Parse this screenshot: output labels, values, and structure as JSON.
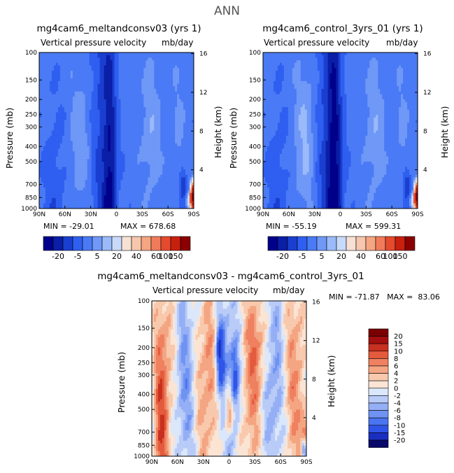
{
  "main_title": "ANN",
  "chart_data": [
    {
      "type": "heatmap",
      "title": "mg4cam6_meltandconsv03 (yrs 1)",
      "subtitle_left": "Vertical pressure velocity",
      "units": "mb/day",
      "xlabel": "",
      "ylabel": "Pressure (mb)",
      "ylabel_right": "Height (km)",
      "x_ticks": [
        "90N",
        "60N",
        "30N",
        "0",
        "30S",
        "60S",
        "90S"
      ],
      "y_ticks": [
        "100",
        "150",
        "200",
        "250",
        "300",
        "400",
        "500",
        "700",
        "850",
        "1000"
      ],
      "y_right_ticks": [
        "16",
        "12",
        "8",
        "4"
      ],
      "ylim": [
        1000,
        100
      ],
      "y_scale": "log",
      "min_label": "MIN = -29.01",
      "max_label": "MAX = 678.68",
      "colorbar_ticks": [
        "-20",
        "-5",
        "5",
        "20",
        "40",
        "60",
        "100",
        "150"
      ],
      "colorbar_orientation": "horizontal"
    },
    {
      "type": "heatmap",
      "title": "mg4cam6_control_3yrs_01 (yrs 1)",
      "subtitle_left": "Vertical pressure velocity",
      "units": "mb/day",
      "xlabel": "",
      "ylabel": "Pressure (mb)",
      "ylabel_right": "Height (km)",
      "x_ticks": [
        "90N",
        "60N",
        "30N",
        "0",
        "30S",
        "60S",
        "90S"
      ],
      "y_ticks": [
        "100",
        "150",
        "200",
        "250",
        "300",
        "400",
        "500",
        "700",
        "850",
        "1000"
      ],
      "y_right_ticks": [
        "16",
        "12",
        "8",
        "4"
      ],
      "ylim": [
        1000,
        100
      ],
      "y_scale": "log",
      "min_label": "MIN = -55.19",
      "max_label": "MAX = 599.31",
      "colorbar_ticks": [
        "-20",
        "-5",
        "5",
        "20",
        "40",
        "60",
        "100",
        "150"
      ],
      "colorbar_orientation": "horizontal"
    },
    {
      "type": "heatmap",
      "title": "mg4cam6_meltandconsv03 - mg4cam6_control_3yrs_01",
      "subtitle_left": "Vertical pressure velocity",
      "units": "mb/day",
      "xlabel": "",
      "ylabel": "Pressure (mb)",
      "ylabel_right": "Height (km)",
      "x_ticks": [
        "90N",
        "60N",
        "30N",
        "0",
        "30S",
        "60S",
        "90S"
      ],
      "y_ticks": [
        "100",
        "150",
        "200",
        "250",
        "300",
        "400",
        "500",
        "700",
        "850",
        "1000"
      ],
      "y_right_ticks": [
        "16",
        "12",
        "8",
        "4"
      ],
      "ylim": [
        1000,
        100
      ],
      "y_scale": "log",
      "min_max_label": "MIN = -71.87   MAX =  83.06",
      "colorbar_ticks": [
        "20",
        "15",
        "10",
        "8",
        "6",
        "4",
        "2",
        "0",
        "-2",
        "-4",
        "-6",
        "-8",
        "-10",
        "-15",
        "-20"
      ],
      "colorbar_orientation": "vertical"
    }
  ],
  "colors": {
    "abs_scale": [
      "#00008b",
      "#0a1ea6",
      "#1a3fd0",
      "#2f5ff0",
      "#4a7af5",
      "#6f98f7",
      "#9bbaf9",
      "#c8daf9",
      "#f7e1d4",
      "#f6c6ad",
      "#f4a582",
      "#f07b5a",
      "#e64a2e",
      "#c8200e",
      "#8b0000"
    ],
    "diff_scale": [
      "#08086b",
      "#1a2fc0",
      "#2f55e8",
      "#4a75f0",
      "#6f93f3",
      "#94aff5",
      "#b9cbf7",
      "#dbe7fb",
      "#fbe4d4",
      "#f8c9ad",
      "#f4a582",
      "#ef8060",
      "#e35a3c",
      "#c8301f",
      "#a30e0e",
      "#7a0000"
    ]
  }
}
